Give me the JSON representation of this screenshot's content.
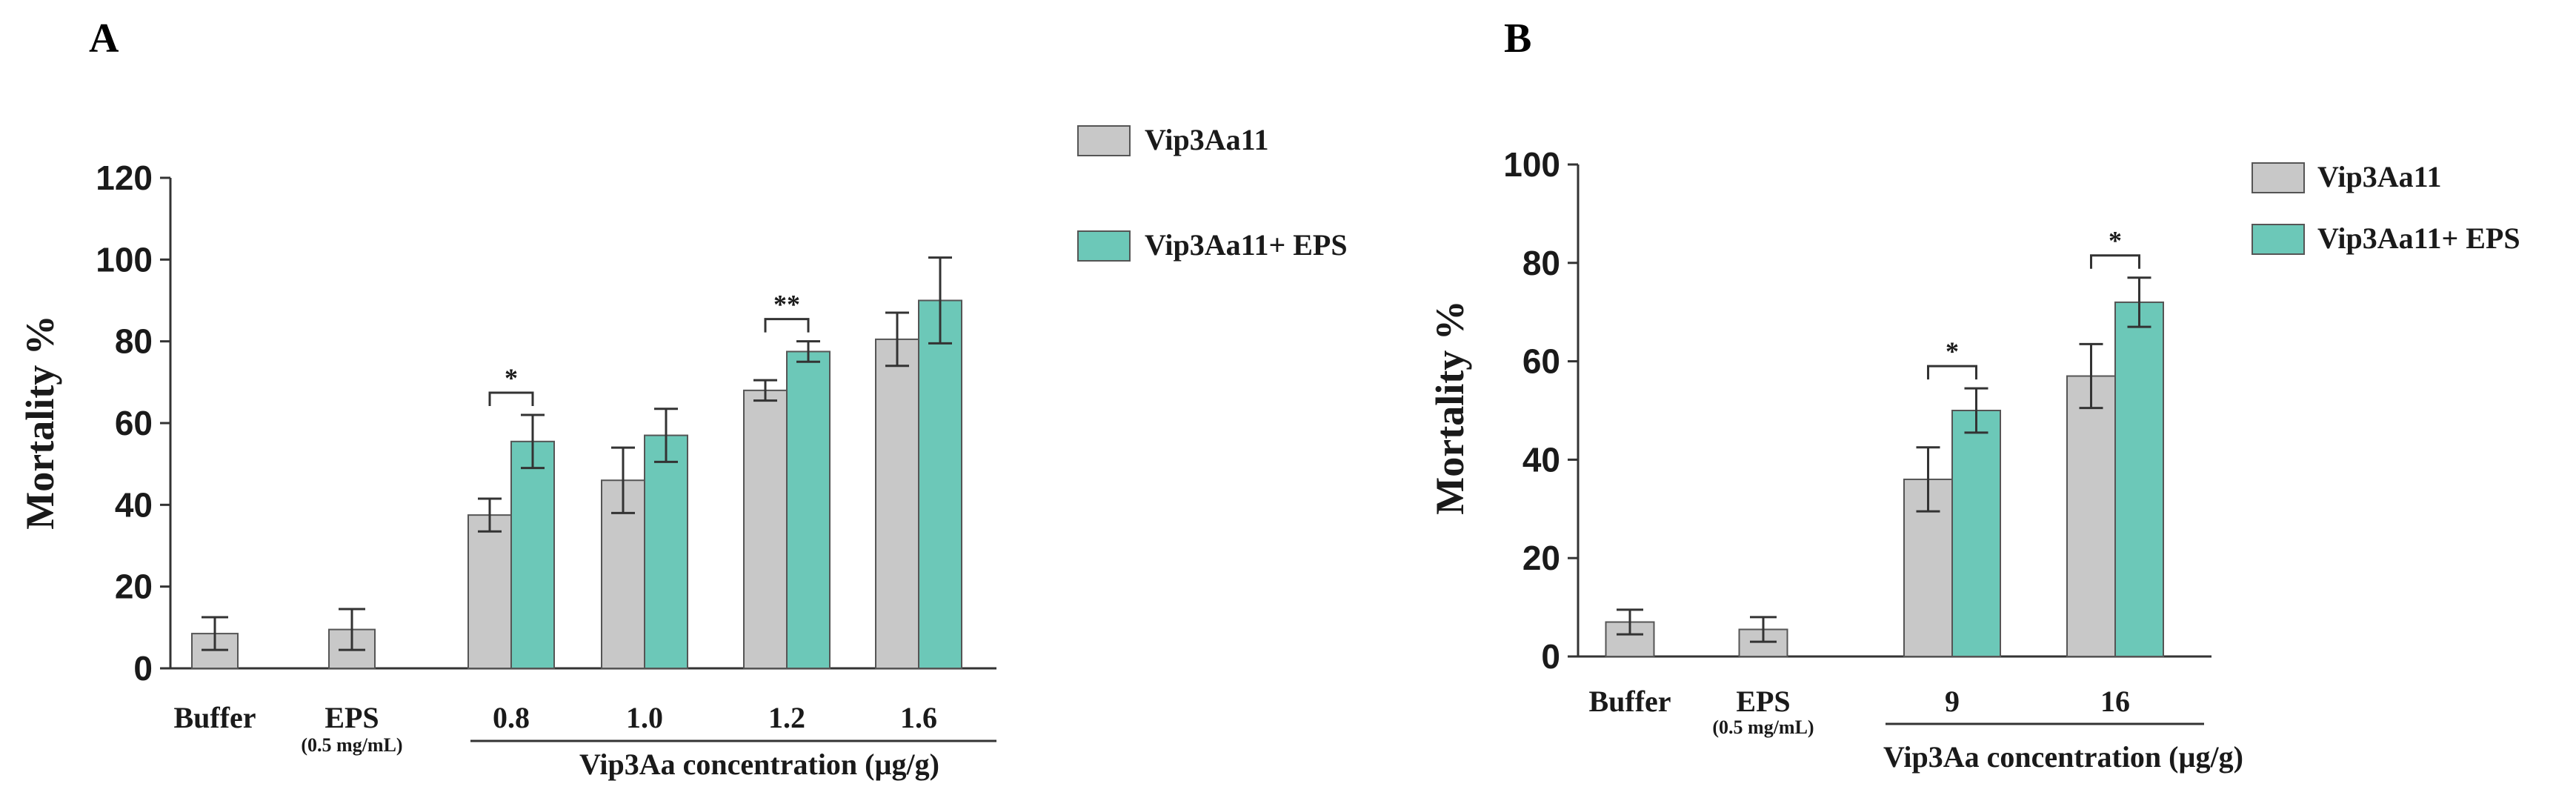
{
  "colors": {
    "vip": "#c8c8c8",
    "eps_combo": "#6cc8b8",
    "axis": "#333333",
    "bar_edge": "#555555"
  },
  "legend": [
    "Vip3Aa11",
    "Vip3Aa11+ EPS"
  ],
  "chart_data": [
    {
      "panel": "A",
      "type": "bar",
      "ylabel": "Mortality %",
      "ylim": [
        0,
        120
      ],
      "yticks": [
        0,
        20,
        40,
        60,
        80,
        100,
        120
      ],
      "xlabel": "Vip3Aa concentration (µg/g)",
      "categories": [
        "Buffer",
        "EPS",
        "0.8",
        "1.0",
        "1.2",
        "1.6"
      ],
      "category_sublabels": [
        "",
        "(0.5 mg/mL)",
        "",
        "",
        "",
        ""
      ],
      "controls": [
        {
          "category": "Buffer",
          "value": 8.5,
          "err": 4
        },
        {
          "category": "EPS",
          "value": 9.5,
          "err": 5
        }
      ],
      "series": [
        {
          "name": "Vip3Aa11",
          "values": [
            null,
            null,
            37.5,
            46,
            68,
            80.5
          ],
          "errors": [
            null,
            null,
            4,
            8,
            2.5,
            6.5
          ]
        },
        {
          "name": "Vip3Aa11+ EPS",
          "values": [
            null,
            null,
            55.5,
            57,
            77.5,
            90
          ],
          "errors": [
            null,
            null,
            6.5,
            6.5,
            2.5,
            10.5
          ]
        }
      ],
      "significance": [
        {
          "category": "0.8",
          "label": "*"
        },
        {
          "category": "1.2",
          "label": "**"
        }
      ]
    },
    {
      "panel": "B",
      "type": "bar",
      "ylabel": "Mortality %",
      "ylim": [
        0,
        100
      ],
      "yticks": [
        0,
        20,
        40,
        60,
        80,
        100
      ],
      "xlabel": "Vip3Aa concentration (µg/g)",
      "categories": [
        "Buffer",
        "EPS",
        "9",
        "16"
      ],
      "category_sublabels": [
        "",
        "(0.5 mg/mL)",
        "",
        ""
      ],
      "controls": [
        {
          "category": "Buffer",
          "value": 7,
          "err": 2.5
        },
        {
          "category": "EPS",
          "value": 5.5,
          "err": 2.5
        }
      ],
      "series": [
        {
          "name": "Vip3Aa11",
          "values": [
            null,
            null,
            36,
            57
          ],
          "errors": [
            null,
            null,
            6.5,
            6.5
          ]
        },
        {
          "name": "Vip3Aa11+ EPS",
          "values": [
            null,
            null,
            50,
            72
          ],
          "errors": [
            null,
            null,
            4.5,
            5
          ]
        }
      ],
      "significance": [
        {
          "category": "9",
          "label": "*"
        },
        {
          "category": "16",
          "label": "*"
        }
      ]
    }
  ]
}
